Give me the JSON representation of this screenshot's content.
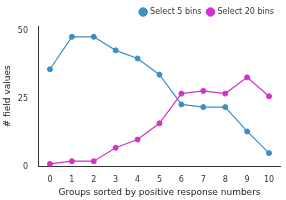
{
  "chart_data": {
    "type": "line",
    "x_label": "Groups sorted by positive response numbers",
    "y_label": "# field values",
    "categories": [
      "0",
      "1",
      "2",
      "3",
      "4",
      "5",
      "6",
      "7",
      "8",
      "9",
      "10"
    ],
    "series": [
      {
        "name": "Select 5 bins",
        "color": "#3a8fc8",
        "marker": "circle",
        "values": [
          36,
          48,
          48,
          43,
          40,
          34,
          23,
          22,
          22,
          13,
          5
        ]
      },
      {
        "name": "Select 20 bins",
        "color": "#d42fcf",
        "marker": "circle",
        "values": [
          1,
          2,
          2,
          7,
          10,
          16,
          27,
          28,
          27,
          33,
          26
        ]
      }
    ],
    "ylim": [
      0,
      52
    ],
    "yticks": [
      0,
      25,
      50
    ],
    "grid": false,
    "legend": "upper right"
  }
}
